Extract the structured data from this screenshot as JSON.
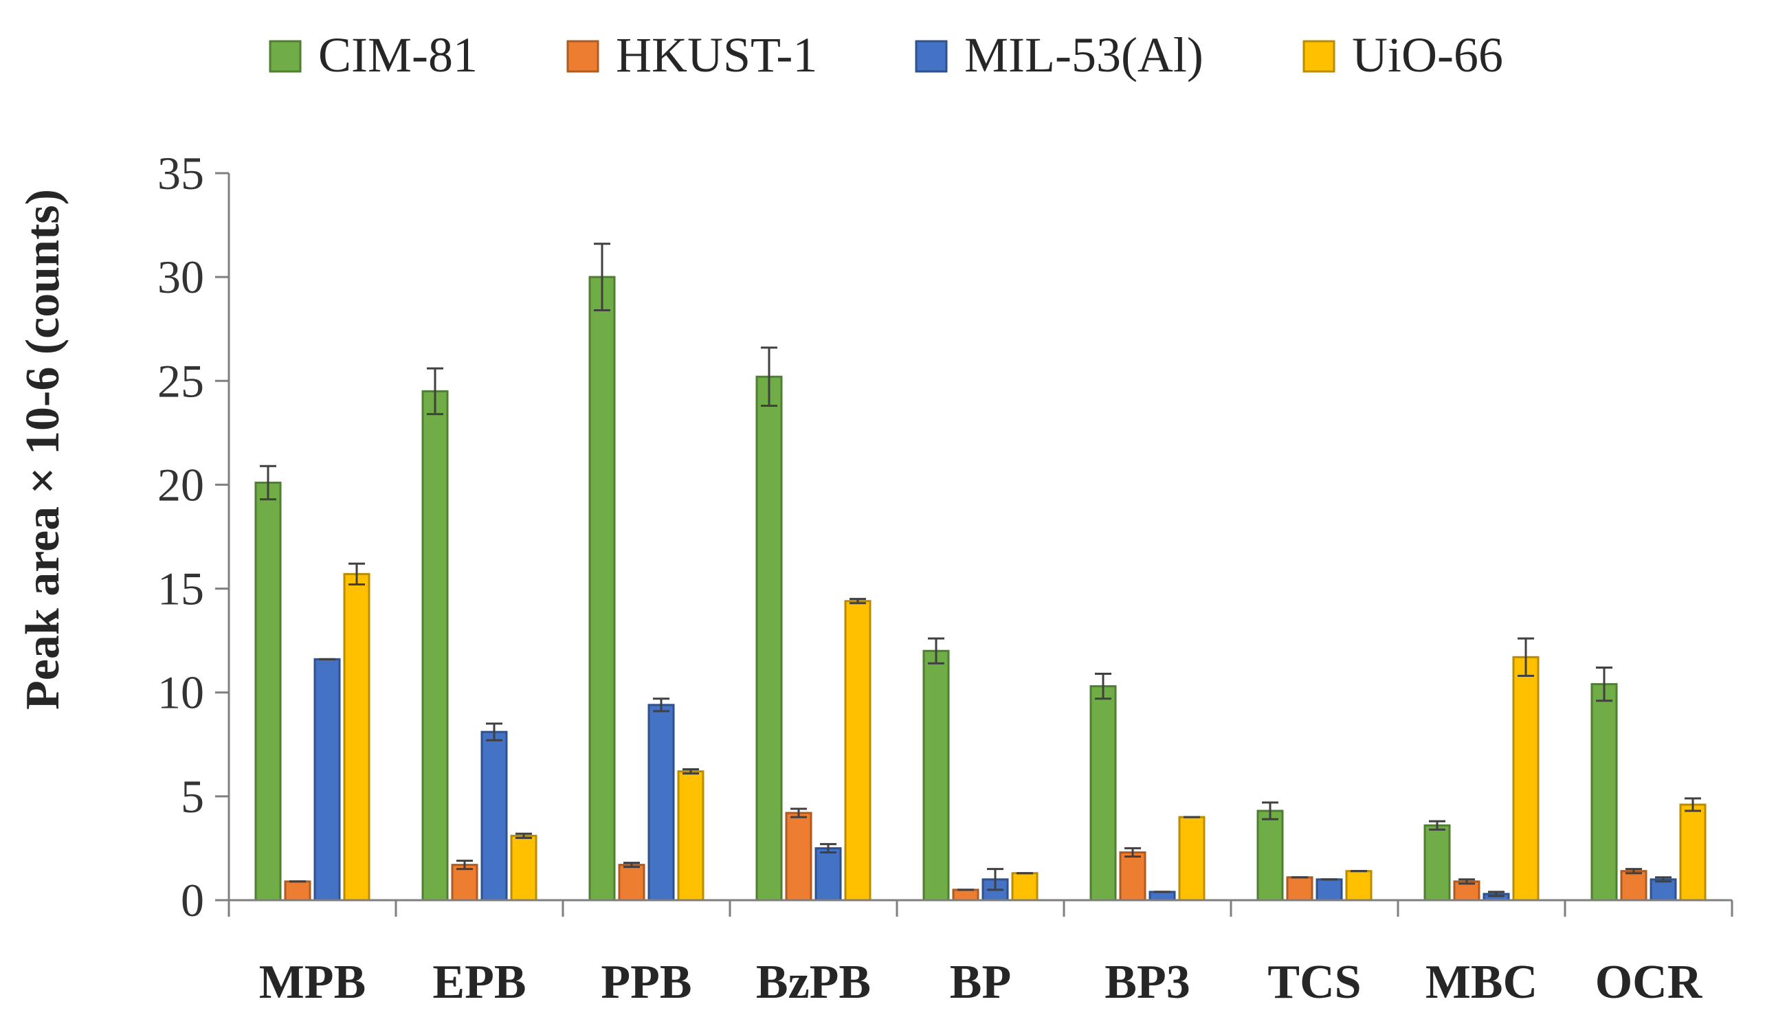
{
  "chart_data": {
    "type": "bar",
    "title": "",
    "xlabel": "",
    "ylabel": "Peak area × 10-6 (counts)",
    "ylim": [
      0,
      35
    ],
    "yticks": [
      0,
      5,
      10,
      15,
      20,
      25,
      30,
      35
    ],
    "grid": false,
    "legend_position": "top",
    "categories": [
      "MPB",
      "EPB",
      "PPB",
      "BzPB",
      "BP",
      "BP3",
      "TCS",
      "MBC",
      "OCR"
    ],
    "series": [
      {
        "name": "CIM-81",
        "color": "#70AD47",
        "border": "#507E32",
        "values": [
          20.1,
          24.5,
          30.0,
          25.2,
          12.0,
          10.3,
          4.3,
          3.6,
          10.4
        ],
        "errors": [
          0.8,
          1.1,
          1.6,
          1.4,
          0.6,
          0.6,
          0.4,
          0.2,
          0.8
        ]
      },
      {
        "name": "HKUST-1",
        "color": "#ED7D31",
        "border": "#AE5A21",
        "values": [
          0.9,
          1.7,
          1.7,
          4.2,
          0.5,
          2.3,
          1.1,
          0.9,
          1.4
        ],
        "errors": [
          0.0,
          0.2,
          0.1,
          0.2,
          0.0,
          0.2,
          0.0,
          0.1,
          0.1
        ]
      },
      {
        "name": "MIL-53(Al)",
        "color": "#4472C4",
        "border": "#2F528F",
        "values": [
          11.6,
          8.1,
          9.4,
          2.5,
          1.0,
          0.4,
          1.0,
          0.3,
          1.0
        ],
        "errors": [
          0.0,
          0.4,
          0.3,
          0.2,
          0.5,
          0.0,
          0.0,
          0.1,
          0.1
        ]
      },
      {
        "name": "UiO-66",
        "color": "#FFC000",
        "border": "#BC8C00",
        "values": [
          15.7,
          3.1,
          6.2,
          14.4,
          1.3,
          4.0,
          1.4,
          11.7,
          4.6
        ],
        "errors": [
          0.5,
          0.1,
          0.1,
          0.1,
          0.0,
          0.0,
          0.0,
          0.9,
          0.3
        ]
      }
    ]
  }
}
